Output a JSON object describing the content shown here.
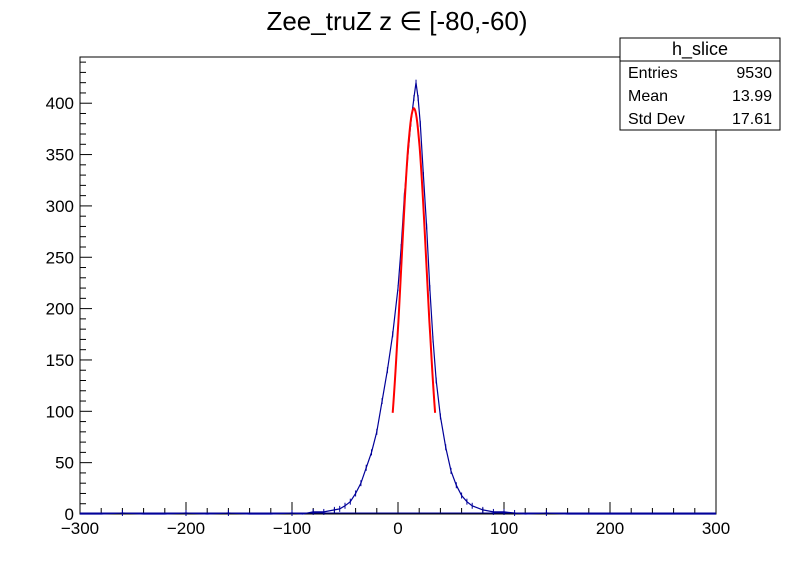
{
  "chart_data": {
    "type": "histogram",
    "title": "Zee_truZ z  ∈ [-80,-60)",
    "xlabel": "",
    "ylabel": "",
    "xlim": [
      -300,
      300
    ],
    "ylim": [
      0,
      445
    ],
    "x_ticks": [
      -300,
      -200,
      -100,
      0,
      100,
      200,
      300
    ],
    "x_tick_labels": [
      "−300",
      "−200",
      "−100",
      "0",
      "100",
      "200",
      "300"
    ],
    "y_ticks": [
      0,
      50,
      100,
      150,
      200,
      250,
      300,
      350,
      400
    ],
    "y_tick_labels": [
      "0",
      "50",
      "100",
      "150",
      "200",
      "250",
      "300",
      "350",
      "400"
    ],
    "histogram_color": "#000099",
    "fit_color": "#ff0000",
    "series": [
      {
        "values_description": "bin center x, count",
        "points": [
          [
            -300,
            0
          ],
          [
            -280,
            0
          ],
          [
            -260,
            1
          ],
          [
            -240,
            0
          ],
          [
            -220,
            0
          ],
          [
            -200,
            1
          ],
          [
            -180,
            0
          ],
          [
            -160,
            1
          ],
          [
            -140,
            0
          ],
          [
            -120,
            0
          ],
          [
            -100,
            1
          ],
          [
            -90,
            0
          ],
          [
            -80,
            2
          ],
          [
            -70,
            2
          ],
          [
            -60,
            4
          ],
          [
            -55,
            5
          ],
          [
            -50,
            8
          ],
          [
            -45,
            12
          ],
          [
            -40,
            20
          ],
          [
            -35,
            30
          ],
          [
            -30,
            45
          ],
          [
            -25,
            60
          ],
          [
            -20,
            80
          ],
          [
            -15,
            110
          ],
          [
            -10,
            140
          ],
          [
            -5,
            175
          ],
          [
            0,
            220
          ],
          [
            3,
            260
          ],
          [
            6,
            310
          ],
          [
            9,
            345
          ],
          [
            12,
            380
          ],
          [
            15,
            405
          ],
          [
            17,
            420
          ],
          [
            19,
            405
          ],
          [
            21,
            380
          ],
          [
            24,
            330
          ],
          [
            27,
            280
          ],
          [
            30,
            220
          ],
          [
            33,
            170
          ],
          [
            36,
            130
          ],
          [
            40,
            95
          ],
          [
            45,
            65
          ],
          [
            50,
            42
          ],
          [
            55,
            28
          ],
          [
            60,
            18
          ],
          [
            65,
            12
          ],
          [
            70,
            8
          ],
          [
            80,
            4
          ],
          [
            90,
            2
          ],
          [
            100,
            2
          ],
          [
            110,
            1
          ],
          [
            120,
            0
          ],
          [
            140,
            1
          ],
          [
            160,
            0
          ],
          [
            180,
            0
          ],
          [
            200,
            0
          ],
          [
            220,
            0
          ],
          [
            240,
            0
          ],
          [
            260,
            0
          ],
          [
            280,
            0
          ],
          [
            300,
            0
          ]
        ]
      }
    ],
    "fit": {
      "type": "gaus",
      "x_range": [
        -5,
        35
      ],
      "mean": 15,
      "sigma": 12,
      "amplitude": 395
    },
    "stats_box": {
      "title": "h_slice",
      "rows": [
        {
          "label": "Entries",
          "value": "9530"
        },
        {
          "label": "Mean",
          "value": "13.99"
        },
        {
          "label": "Std Dev",
          "value": "17.61"
        }
      ]
    }
  }
}
